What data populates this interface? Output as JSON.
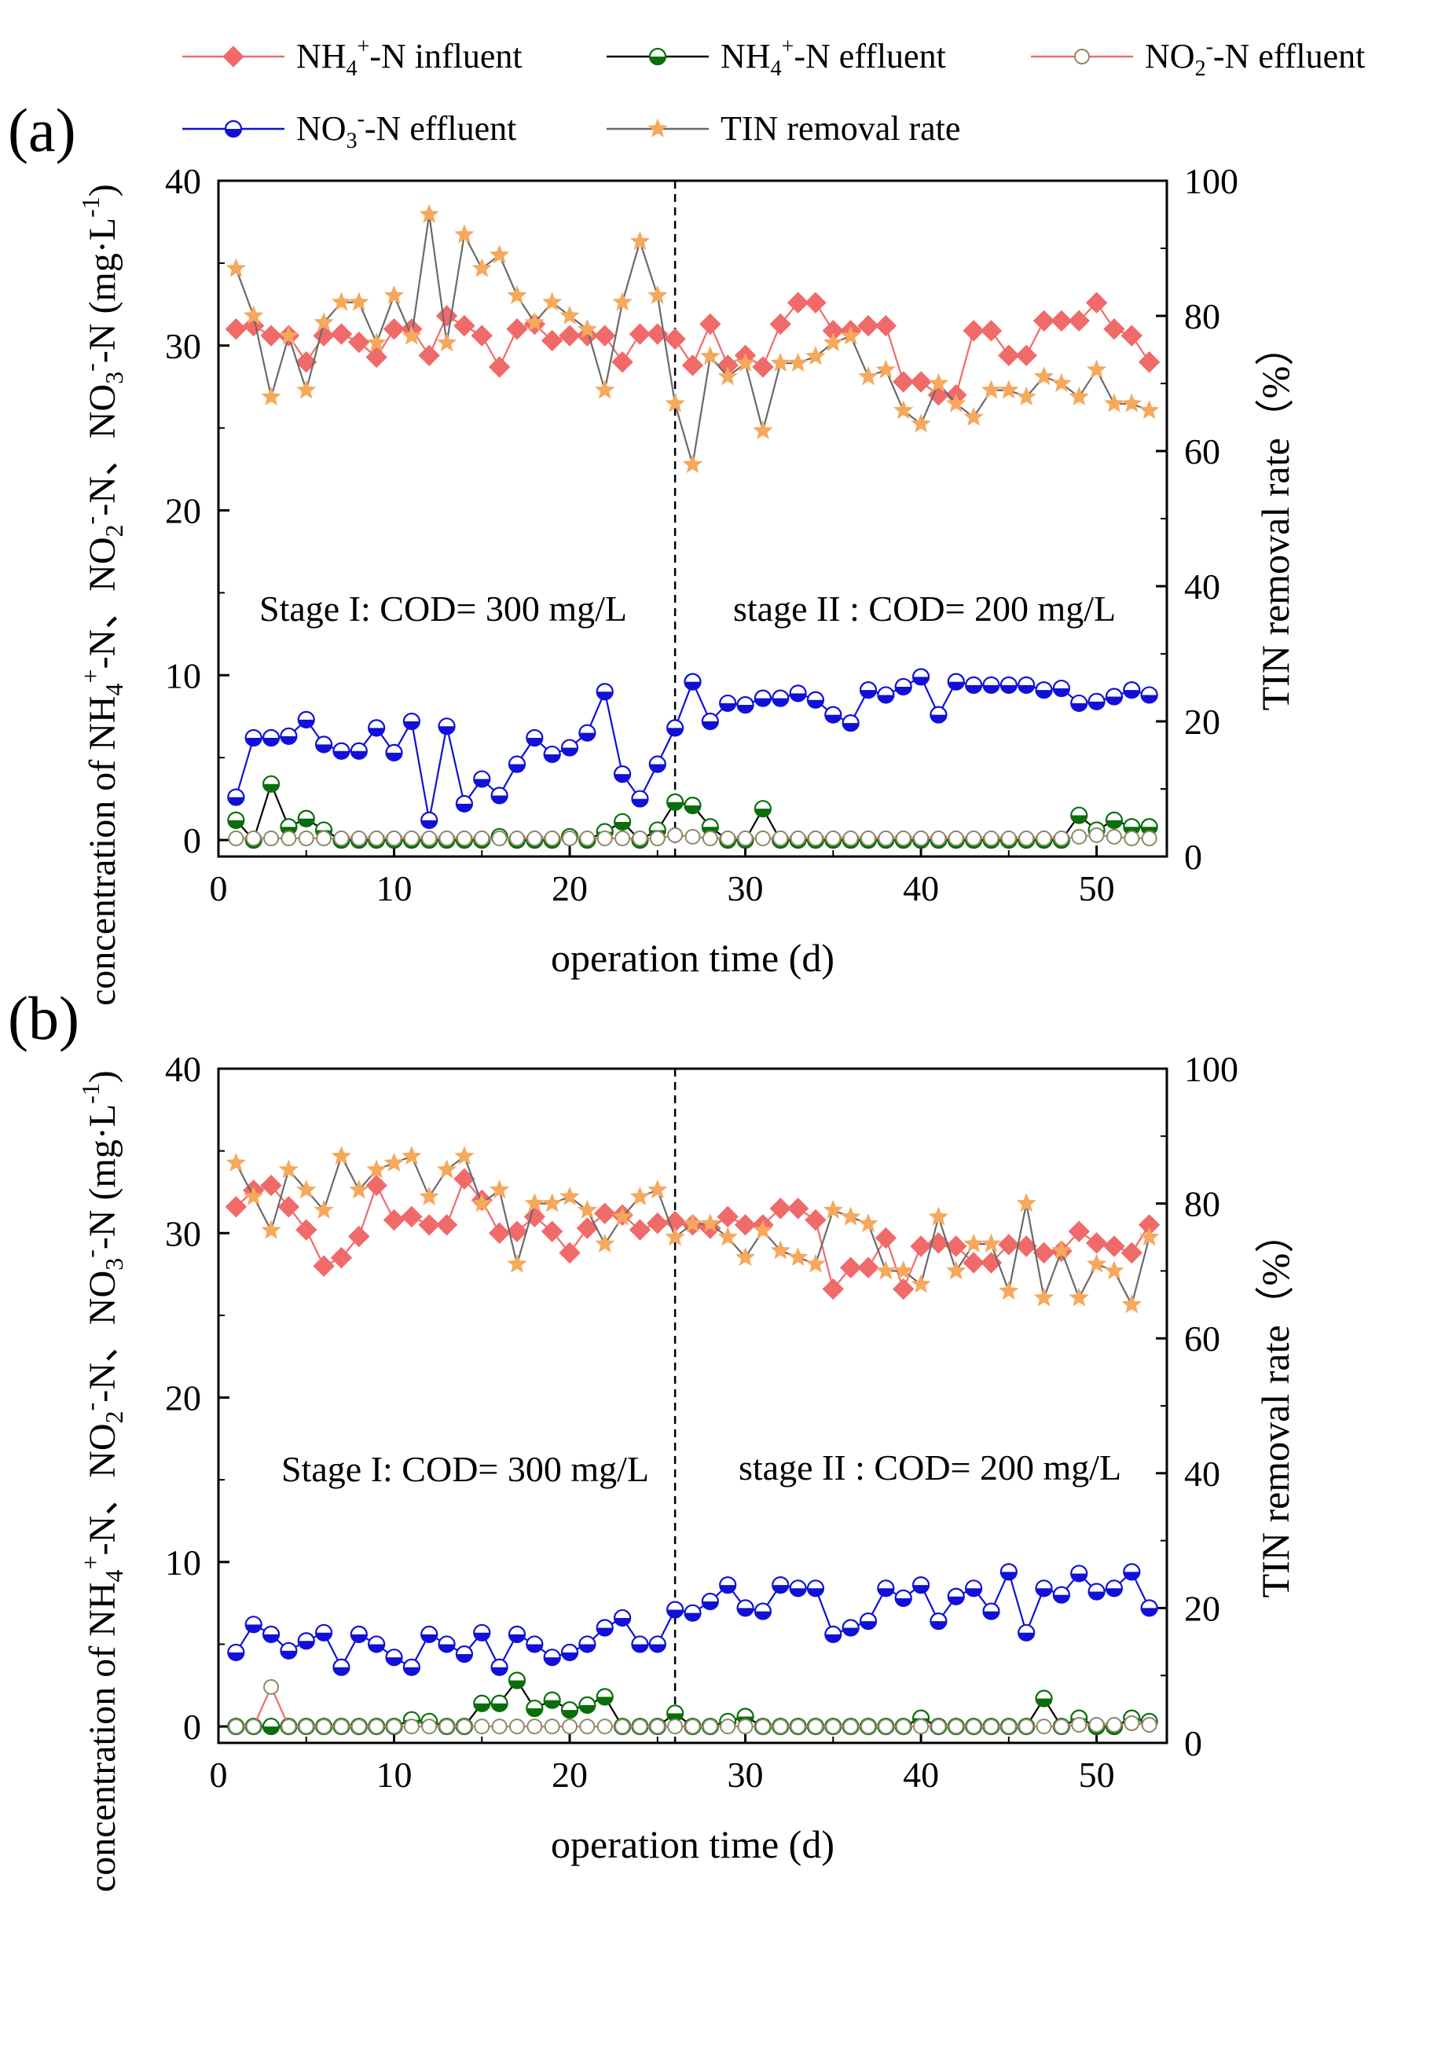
{
  "legend": {
    "items": [
      {
        "key": "nh4_inf",
        "label_main": "NH",
        "sub": "4",
        "sup": "+",
        "label_rest": "-N influent",
        "color": "#f06a6a",
        "marker": "diamond"
      },
      {
        "key": "nh4_eff",
        "label_main": "NH",
        "sub": "4",
        "sup": "+",
        "label_rest": "-N effluent",
        "color": "#0a6e0a",
        "marker": "halfcircle"
      },
      {
        "key": "no2_eff",
        "label_main": "NO",
        "sub": "2",
        "sup": "-",
        "label_rest": "-N effluent",
        "color": "#f06a6a",
        "marker": "opencircle"
      },
      {
        "key": "no3_eff",
        "label_main": "NO",
        "sub": "3",
        "sup": "-",
        "label_rest": "-N effluent",
        "color": "#1010d8",
        "marker": "halfcircle"
      },
      {
        "key": "tin_rate",
        "label_main": "TIN removal rate",
        "sub": "",
        "sup": "",
        "label_rest": "",
        "color": "#f6a85c",
        "marker": "star"
      }
    ]
  },
  "colors": {
    "nh4_inf": "#f06a6a",
    "nh4_eff": "#0a6e0a",
    "no2_eff_line": "#f06a6a",
    "no2_eff_marker": "#8a8a6a",
    "no3_eff": "#1010d8",
    "tin_line": "#6a6a6a",
    "tin_marker": "#f6a85c"
  },
  "panels": [
    {
      "label": "(a)",
      "stage1": "Stage I: COD= 300 mg/L",
      "stage2": "stage II : COD= 200 mg/L"
    },
    {
      "label": "(b)",
      "stage1": "Stage I: COD= 300 mg/L",
      "stage2": "stage II : COD= 200 mg/L"
    }
  ],
  "axes": {
    "xlabel": "operation time (d)",
    "ylabel_left": "concentration of NH4+-N、NO2−-N、NO3−-N (mg·L−1)",
    "ylabel_right": "TIN removal rate（%）",
    "x_ticks": [
      0,
      10,
      20,
      30,
      40,
      50
    ],
    "y_left_ticks": [
      0,
      10,
      20,
      30,
      40
    ],
    "y_right_ticks": [
      0,
      20,
      40,
      60,
      80,
      100
    ]
  },
  "chart_data": [
    {
      "type": "line",
      "panel": "a",
      "xlabel": "operation time (d)",
      "ylabel": "concentration of NH4+-N、NO2−-N、NO3−-N (mg·L−1)",
      "y2label": "TIN removal rate（%）",
      "xlim": [
        0,
        54
      ],
      "ylim": [
        -1,
        40
      ],
      "y2lim": [
        0,
        100
      ],
      "stage_divider_x": 26,
      "x": [
        1,
        2,
        3,
        4,
        5,
        6,
        7,
        8,
        9,
        10,
        11,
        12,
        13,
        14,
        15,
        16,
        17,
        18,
        19,
        20,
        21,
        22,
        23,
        24,
        25,
        26,
        27,
        28,
        29,
        30,
        31,
        32,
        33,
        34,
        35,
        36,
        37,
        38,
        39,
        40,
        41,
        42,
        43,
        44,
        45,
        46,
        47,
        48,
        49,
        50,
        51,
        52,
        53
      ],
      "series": [
        {
          "name": "NH4+-N influent",
          "axis": "left",
          "values": [
            31.0,
            31.2,
            30.6,
            30.6,
            29.0,
            30.6,
            30.7,
            30.2,
            29.3,
            31.0,
            31.0,
            29.4,
            31.8,
            31.2,
            30.6,
            28.7,
            31.0,
            31.3,
            30.3,
            30.6,
            30.6,
            30.6,
            29.0,
            30.7,
            30.7,
            30.4,
            28.8,
            31.3,
            28.8,
            29.4,
            28.7,
            31.3,
            32.6,
            32.6,
            30.9,
            30.9,
            31.2,
            31.2,
            27.8,
            27.8,
            27.0,
            27.0,
            30.9,
            30.9,
            29.4,
            29.4,
            31.5,
            31.5,
            31.5,
            32.6,
            31.0,
            30.6,
            29.0
          ]
        },
        {
          "name": "NH4+-N effluent",
          "axis": "left",
          "values": [
            1.2,
            0.0,
            3.4,
            0.8,
            1.3,
            0.6,
            0.0,
            0.0,
            0.0,
            0.0,
            0.0,
            0.0,
            0.0,
            0.0,
            0.0,
            0.2,
            0.0,
            0.0,
            0.0,
            0.2,
            0.0,
            0.5,
            1.1,
            0.0,
            0.6,
            2.3,
            2.1,
            0.8,
            0.0,
            0.0,
            1.9,
            0.0,
            0.0,
            0.0,
            0.0,
            0.0,
            0.0,
            0.0,
            0.0,
            0.0,
            0.0,
            0.0,
            0.0,
            0.0,
            0.0,
            0.0,
            0.0,
            0.0,
            1.5,
            0.6,
            1.2,
            0.8,
            0.8
          ]
        },
        {
          "name": "NO2−-N effluent",
          "axis": "left",
          "values": [
            0.1,
            0.1,
            0.1,
            0.1,
            0.1,
            0.1,
            0.1,
            0.1,
            0.1,
            0.1,
            0.1,
            0.1,
            0.1,
            0.1,
            0.1,
            0.1,
            0.1,
            0.1,
            0.1,
            0.1,
            0.1,
            0.1,
            0.1,
            0.1,
            0.1,
            0.3,
            0.2,
            0.1,
            0.1,
            0.1,
            0.1,
            0.1,
            0.1,
            0.1,
            0.1,
            0.1,
            0.1,
            0.1,
            0.1,
            0.1,
            0.1,
            0.1,
            0.1,
            0.1,
            0.1,
            0.1,
            0.1,
            0.1,
            0.2,
            0.3,
            0.2,
            0.1,
            0.1
          ]
        },
        {
          "name": "NO3−-N effluent",
          "axis": "left",
          "values": [
            2.6,
            6.2,
            6.2,
            6.3,
            7.3,
            5.8,
            5.4,
            5.4,
            6.8,
            5.3,
            7.2,
            1.2,
            6.9,
            2.2,
            3.7,
            2.7,
            4.6,
            6.2,
            5.2,
            5.6,
            6.5,
            9.0,
            4.0,
            2.5,
            4.6,
            6.8,
            9.6,
            7.2,
            8.3,
            8.2,
            8.6,
            8.6,
            8.9,
            8.5,
            7.6,
            7.1,
            9.1,
            8.8,
            9.3,
            9.9,
            7.6,
            9.6,
            9.4,
            9.4,
            9.4,
            9.4,
            9.1,
            9.2,
            8.3,
            8.4,
            8.7,
            9.1,
            8.8
          ]
        },
        {
          "name": "TIN removal rate",
          "axis": "right",
          "values": [
            87,
            80,
            68,
            77,
            69,
            79,
            82,
            82,
            76,
            83,
            77,
            95,
            76,
            92,
            87,
            89,
            83,
            79,
            82,
            80,
            78,
            69,
            82,
            91,
            83,
            67,
            58,
            74,
            71,
            73,
            63,
            73,
            73,
            74,
            76,
            77,
            71,
            72,
            66,
            64,
            70,
            67,
            65,
            69,
            69,
            68,
            71,
            70,
            68,
            72,
            67,
            67,
            66
          ]
        }
      ]
    },
    {
      "type": "line",
      "panel": "b",
      "xlabel": "operation time (d)",
      "ylabel": "concentration of NH4+-N、NO2−-N、NO3−-N (mg·L−1)",
      "y2label": "TIN removal rate（%）",
      "xlim": [
        0,
        54
      ],
      "ylim": [
        -1,
        40
      ],
      "y2lim": [
        0,
        100
      ],
      "stage_divider_x": 26,
      "x": [
        1,
        2,
        3,
        4,
        5,
        6,
        7,
        8,
        9,
        10,
        11,
        12,
        13,
        14,
        15,
        16,
        17,
        18,
        19,
        20,
        21,
        22,
        23,
        24,
        25,
        26,
        27,
        28,
        29,
        30,
        31,
        32,
        33,
        34,
        35,
        36,
        37,
        38,
        39,
        40,
        41,
        42,
        43,
        44,
        45,
        46,
        47,
        48,
        49,
        50,
        51,
        52,
        53
      ],
      "series": [
        {
          "name": "NH4+-N influent",
          "axis": "left",
          "values": [
            31.6,
            32.6,
            32.9,
            31.6,
            30.2,
            28.0,
            28.5,
            29.8,
            32.9,
            30.8,
            31.0,
            30.5,
            30.5,
            33.3,
            32.0,
            30.0,
            30.1,
            31.0,
            30.1,
            28.8,
            30.3,
            31.2,
            31.1,
            30.2,
            30.6,
            30.7,
            30.5,
            30.3,
            31.0,
            30.5,
            30.5,
            31.5,
            31.5,
            30.8,
            26.6,
            27.9,
            27.9,
            29.7,
            26.6,
            29.2,
            29.4,
            29.2,
            28.2,
            28.2,
            29.3,
            29.2,
            28.8,
            28.9,
            30.1,
            29.4,
            29.2,
            28.8,
            30.5
          ]
        },
        {
          "name": "NH4+-N effluent",
          "axis": "left",
          "values": [
            0.0,
            0.0,
            0.0,
            0.0,
            0.0,
            0.0,
            0.0,
            0.0,
            0.0,
            0.0,
            0.4,
            0.3,
            0.0,
            0.0,
            1.4,
            1.4,
            2.8,
            1.1,
            1.6,
            1.0,
            1.3,
            1.8,
            0.0,
            0.0,
            0.0,
            0.8,
            0.0,
            0.0,
            0.3,
            0.6,
            0.0,
            0.0,
            0.0,
            0.0,
            0.0,
            0.0,
            0.0,
            0.0,
            0.0,
            0.5,
            0.0,
            0.0,
            0.0,
            0.0,
            0.0,
            0.0,
            1.7,
            0.0,
            0.5,
            0.0,
            0.0,
            0.5,
            0.3
          ]
        },
        {
          "name": "NO2−-N effluent",
          "axis": "left",
          "values": [
            0.0,
            0.0,
            2.4,
            0.0,
            0.0,
            0.0,
            0.0,
            0.0,
            0.0,
            0.0,
            0.0,
            0.0,
            0.0,
            0.0,
            0.0,
            0.0,
            0.0,
            0.0,
            0.0,
            0.0,
            0.0,
            0.0,
            0.0,
            0.0,
            0.0,
            0.0,
            0.0,
            0.0,
            0.0,
            0.0,
            0.0,
            0.0,
            0.0,
            0.0,
            0.0,
            0.0,
            0.0,
            0.0,
            0.0,
            0.0,
            0.0,
            0.0,
            0.0,
            0.0,
            0.0,
            0.0,
            0.0,
            0.0,
            0.1,
            0.1,
            0.1,
            0.2,
            0.1
          ]
        },
        {
          "name": "NO3−-N effluent",
          "axis": "left",
          "values": [
            4.5,
            6.2,
            5.6,
            4.6,
            5.2,
            5.7,
            3.6,
            5.6,
            5.0,
            4.2,
            3.6,
            5.6,
            5.0,
            4.4,
            5.7,
            3.6,
            5.6,
            5.0,
            4.2,
            4.5,
            5.0,
            6.0,
            6.6,
            5.0,
            5.0,
            7.1,
            6.9,
            7.6,
            8.6,
            7.2,
            7.0,
            8.6,
            8.4,
            8.4,
            5.6,
            6.0,
            6.4,
            8.4,
            7.8,
            8.6,
            6.4,
            7.9,
            8.4,
            7.0,
            9.4,
            5.7,
            8.4,
            8.0,
            9.3,
            8.2,
            8.4,
            9.4,
            7.2
          ]
        },
        {
          "name": "TIN removal rate",
          "axis": "right",
          "values": [
            86,
            81,
            76,
            85,
            82,
            79,
            87,
            82,
            85,
            86,
            87,
            81,
            85,
            87,
            80,
            82,
            71,
            80,
            80,
            81,
            79,
            74,
            78,
            81,
            82,
            75,
            77,
            77,
            75,
            72,
            76,
            73,
            72,
            71,
            79,
            78,
            77,
            70,
            70,
            68,
            78,
            70,
            74,
            74,
            67,
            80,
            66,
            73,
            66,
            71,
            70,
            65,
            75
          ]
        }
      ]
    }
  ]
}
